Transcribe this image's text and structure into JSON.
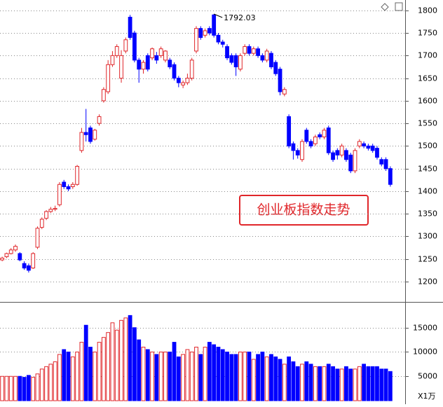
{
  "chart_data": [
    {
      "type": "candlestick",
      "title": "创业板指数走势",
      "up_color": "#e0262a",
      "down_color": "#0000ff",
      "ylim": [
        1155,
        1823
      ],
      "yticks": [
        1200,
        1250,
        1300,
        1350,
        1400,
        1450,
        1500,
        1550,
        1600,
        1650,
        1700,
        1750,
        1800
      ],
      "grid": true,
      "open": [
        1248,
        1255,
        1262,
        1270,
        1262,
        1240,
        1235,
        1230,
        1276,
        1320,
        1340,
        1355,
        1360,
        1370,
        1420,
        1410,
        1410,
        1415,
        1490,
        1530,
        1540,
        1515,
        1550,
        1600,
        1620,
        1680,
        1700,
        1650,
        1710,
        1785,
        1750,
        1690,
        1670,
        1700,
        1695,
        1700,
        1700,
        1690,
        1690,
        1680,
        1650,
        1635,
        1640,
        1650,
        1710,
        1760,
        1745,
        1760,
        1790,
        1745,
        1730,
        1720,
        1700,
        1700,
        1670,
        1705,
        1720,
        1705,
        1715,
        1700,
        1690,
        1705,
        1685,
        1670,
        1615,
        1565,
        1505,
        1490,
        1470,
        1535,
        1510,
        1505,
        1525,
        1520,
        1540,
        1485,
        1490,
        1480,
        1490,
        1480,
        1445,
        1500,
        1505,
        1500,
        1500,
        1495,
        1470,
        1470,
        1450
      ],
      "close": [
        1252,
        1262,
        1270,
        1278,
        1248,
        1230,
        1225,
        1262,
        1318,
        1338,
        1355,
        1360,
        1362,
        1415,
        1410,
        1405,
        1415,
        1455,
        1530,
        1525,
        1510,
        1535,
        1565,
        1625,
        1680,
        1700,
        1720,
        1700,
        1735,
        1740,
        1690,
        1670,
        1685,
        1670,
        1715,
        1690,
        1715,
        1710,
        1675,
        1650,
        1640,
        1640,
        1650,
        1690,
        1760,
        1740,
        1755,
        1750,
        1745,
        1730,
        1725,
        1695,
        1685,
        1675,
        1700,
        1720,
        1705,
        1715,
        1700,
        1690,
        1710,
        1675,
        1660,
        1620,
        1625,
        1500,
        1490,
        1480,
        1510,
        1510,
        1500,
        1520,
        1520,
        1535,
        1485,
        1470,
        1480,
        1500,
        1470,
        1445,
        1490,
        1510,
        1500,
        1495,
        1490,
        1475,
        1460,
        1450,
        1415
      ],
      "high": [
        1255,
        1264,
        1274,
        1282,
        1265,
        1245,
        1240,
        1265,
        1322,
        1342,
        1358,
        1365,
        1368,
        1420,
        1425,
        1415,
        1420,
        1458,
        1540,
        1582,
        1545,
        1538,
        1570,
        1630,
        1690,
        1710,
        1725,
        1712,
        1740,
        1790,
        1755,
        1695,
        1690,
        1705,
        1718,
        1708,
        1720,
        1712,
        1695,
        1685,
        1655,
        1645,
        1660,
        1695,
        1765,
        1765,
        1760,
        1765,
        1792.03,
        1750,
        1735,
        1725,
        1705,
        1705,
        1705,
        1725,
        1725,
        1720,
        1720,
        1705,
        1715,
        1710,
        1690,
        1675,
        1630,
        1570,
        1510,
        1495,
        1515,
        1540,
        1515,
        1525,
        1530,
        1540,
        1545,
        1490,
        1495,
        1505,
        1495,
        1485,
        1495,
        1515,
        1510,
        1505,
        1505,
        1500,
        1475,
        1475,
        1455
      ],
      "low": [
        1245,
        1252,
        1260,
        1266,
        1245,
        1226,
        1220,
        1228,
        1272,
        1316,
        1336,
        1352,
        1356,
        1366,
        1405,
        1400,
        1405,
        1412,
        1485,
        1510,
        1505,
        1512,
        1545,
        1596,
        1615,
        1675,
        1695,
        1640,
        1705,
        1735,
        1685,
        1640,
        1660,
        1665,
        1690,
        1682,
        1695,
        1685,
        1670,
        1645,
        1630,
        1628,
        1635,
        1645,
        1705,
        1735,
        1740,
        1745,
        1740,
        1725,
        1718,
        1690,
        1680,
        1655,
        1665,
        1700,
        1700,
        1700,
        1695,
        1685,
        1685,
        1670,
        1655,
        1612,
        1610,
        1495,
        1470,
        1472,
        1465,
        1505,
        1495,
        1500,
        1515,
        1515,
        1480,
        1465,
        1470,
        1475,
        1465,
        1440,
        1440,
        1495,
        1495,
        1490,
        1485,
        1470,
        1455,
        1445,
        1410
      ]
    },
    {
      "type": "bar",
      "unit_label": "X1万",
      "ylim": [
        0,
        20143
      ],
      "yticks": [
        5000,
        10000,
        15000
      ],
      "values": [
        5000,
        5000,
        5000,
        5000,
        5000,
        4800,
        5200,
        4800,
        5500,
        6500,
        7000,
        7500,
        8000,
        9500,
        10500,
        10000,
        9000,
        10000,
        12000,
        15500,
        11000,
        10000,
        12000,
        13000,
        14000,
        16000,
        14500,
        16500,
        17000,
        17500,
        15000,
        12500,
        11000,
        10500,
        10000,
        9500,
        10000,
        10000,
        10000,
        12000,
        9000,
        9500,
        10500,
        10000,
        11000,
        9500,
        11000,
        12000,
        11500,
        11000,
        10500,
        10000,
        9500,
        9500,
        10000,
        10000,
        10000,
        8500,
        9500,
        10000,
        9000,
        9500,
        9000,
        8500,
        7500,
        9000,
        8000,
        7000,
        7500,
        8000,
        7500,
        7000,
        7000,
        7000,
        7500,
        7000,
        6500,
        6500,
        7000,
        6500,
        6500,
        7000,
        7500,
        7000,
        7000,
        7000,
        6500,
        6500,
        6000
      ]
    }
  ]
}
